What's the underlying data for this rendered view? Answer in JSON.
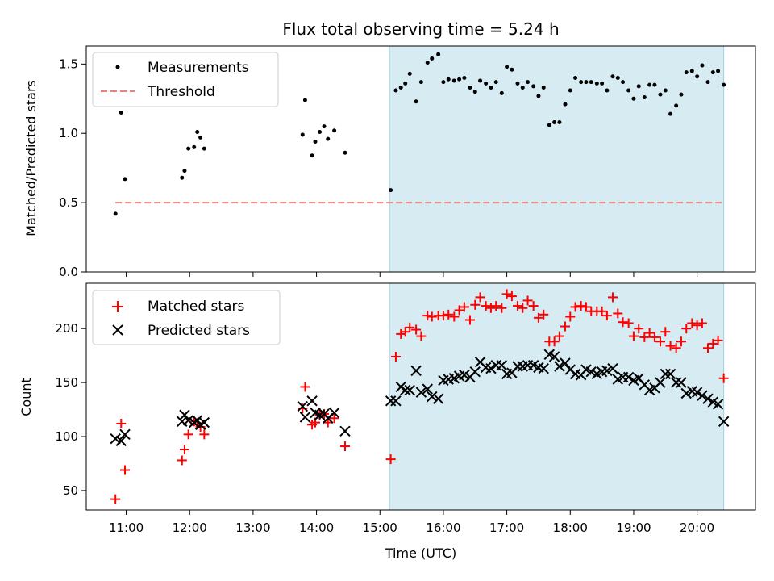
{
  "title": "Flux total observing time = 5.24 h",
  "colors": {
    "measurement": "#000000",
    "threshold": "#f08080",
    "shade": "#add8e6",
    "matched": "#ff0000",
    "predicted": "#000000"
  },
  "chart_data": [
    {
      "type": "scatter",
      "ylabel": "Matched/Predicted stars",
      "xlim": [
        10.37,
        20.92
      ],
      "ylim": [
        0,
        1.63
      ],
      "yticks": [
        "0.0",
        "0.5",
        "1.0",
        "1.5"
      ],
      "yticks_values": [
        0,
        0.5,
        1.0,
        1.5
      ],
      "legend": {
        "placement": "top-left",
        "entries": [
          "Measurements",
          "Threshold"
        ]
      },
      "shaded_region": [
        15.15,
        20.42
      ],
      "threshold": {
        "name": "Threshold",
        "y": 0.5,
        "x": [
          10.83,
          20.42
        ]
      },
      "series": [
        {
          "name": "Measurements",
          "points": [
            [
              10.83,
              0.42
            ],
            [
              10.92,
              1.15
            ],
            [
              10.98,
              0.67
            ],
            [
              11.88,
              0.68
            ],
            [
              11.92,
              0.73
            ],
            [
              11.98,
              0.89
            ],
            [
              12.07,
              0.9
            ],
            [
              12.12,
              1.01
            ],
            [
              12.17,
              0.97
            ],
            [
              12.23,
              0.89
            ],
            [
              13.78,
              0.99
            ],
            [
              13.82,
              1.24
            ],
            [
              13.93,
              0.84
            ],
            [
              13.98,
              0.94
            ],
            [
              14.05,
              1.01
            ],
            [
              14.12,
              1.05
            ],
            [
              14.18,
              0.96
            ],
            [
              14.28,
              1.02
            ],
            [
              14.45,
              0.86
            ],
            [
              15.17,
              0.59
            ],
            [
              15.25,
              1.31
            ],
            [
              15.33,
              1.33
            ],
            [
              15.4,
              1.36
            ],
            [
              15.47,
              1.43
            ],
            [
              15.57,
              1.23
            ],
            [
              15.65,
              1.37
            ],
            [
              15.75,
              1.51
            ],
            [
              15.82,
              1.54
            ],
            [
              15.92,
              1.57
            ],
            [
              16.0,
              1.37
            ],
            [
              16.08,
              1.39
            ],
            [
              16.17,
              1.38
            ],
            [
              16.25,
              1.39
            ],
            [
              16.33,
              1.4
            ],
            [
              16.42,
              1.33
            ],
            [
              16.5,
              1.3
            ],
            [
              16.58,
              1.38
            ],
            [
              16.67,
              1.36
            ],
            [
              16.75,
              1.33
            ],
            [
              16.83,
              1.37
            ],
            [
              16.92,
              1.29
            ],
            [
              17.0,
              1.48
            ],
            [
              17.08,
              1.46
            ],
            [
              17.17,
              1.36
            ],
            [
              17.25,
              1.33
            ],
            [
              17.33,
              1.37
            ],
            [
              17.42,
              1.34
            ],
            [
              17.5,
              1.27
            ],
            [
              17.58,
              1.33
            ],
            [
              17.67,
              1.06
            ],
            [
              17.75,
              1.08
            ],
            [
              17.83,
              1.08
            ],
            [
              17.92,
              1.21
            ],
            [
              18.0,
              1.31
            ],
            [
              18.08,
              1.4
            ],
            [
              18.17,
              1.37
            ],
            [
              18.25,
              1.37
            ],
            [
              18.33,
              1.37
            ],
            [
              18.42,
              1.36
            ],
            [
              18.5,
              1.36
            ],
            [
              18.58,
              1.31
            ],
            [
              18.67,
              1.41
            ],
            [
              18.75,
              1.4
            ],
            [
              18.83,
              1.37
            ],
            [
              18.92,
              1.31
            ],
            [
              19.0,
              1.25
            ],
            [
              19.08,
              1.34
            ],
            [
              19.17,
              1.26
            ],
            [
              19.25,
              1.35
            ],
            [
              19.33,
              1.35
            ],
            [
              19.42,
              1.28
            ],
            [
              19.5,
              1.31
            ],
            [
              19.58,
              1.14
            ],
            [
              19.67,
              1.2
            ],
            [
              19.75,
              1.28
            ],
            [
              19.83,
              1.44
            ],
            [
              19.92,
              1.45
            ],
            [
              20.0,
              1.41
            ],
            [
              20.08,
              1.49
            ],
            [
              20.17,
              1.37
            ],
            [
              20.25,
              1.44
            ],
            [
              20.33,
              1.45
            ],
            [
              20.42,
              1.35
            ]
          ]
        }
      ]
    },
    {
      "type": "scatter",
      "xlabel": "Time (UTC)",
      "ylabel": "Count",
      "xlim": [
        10.37,
        20.92
      ],
      "ylim": [
        32,
        242
      ],
      "yticks": [
        "50",
        "100",
        "150",
        "200"
      ],
      "yticks_values": [
        50,
        100,
        150,
        200
      ],
      "xticks": [
        "11:00",
        "12:00",
        "13:00",
        "14:00",
        "15:00",
        "16:00",
        "17:00",
        "18:00",
        "19:00",
        "20:00"
      ],
      "xticks_values": [
        11,
        12,
        13,
        14,
        15,
        16,
        17,
        18,
        19,
        20
      ],
      "legend": {
        "placement": "top-left",
        "entries": [
          "Matched stars",
          "Predicted stars"
        ]
      },
      "shaded_region": [
        15.15,
        20.42
      ],
      "series": [
        {
          "name": "Matched stars",
          "marker": "plus",
          "points": [
            [
              10.83,
              42
            ],
            [
              10.92,
              112
            ],
            [
              10.98,
              69
            ],
            [
              11.88,
              78
            ],
            [
              11.92,
              88
            ],
            [
              11.98,
              102
            ],
            [
              12.07,
              114
            ],
            [
              12.12,
              111
            ],
            [
              12.17,
              109
            ],
            [
              12.23,
              102
            ],
            [
              13.78,
              126
            ],
            [
              13.82,
              146
            ],
            [
              13.93,
              111
            ],
            [
              13.98,
              113
            ],
            [
              14.05,
              120
            ],
            [
              14.12,
              121
            ],
            [
              14.18,
              113
            ],
            [
              14.28,
              117
            ],
            [
              14.45,
              91
            ],
            [
              15.17,
              79
            ],
            [
              15.25,
              174
            ],
            [
              15.33,
              195
            ],
            [
              15.4,
              197
            ],
            [
              15.47,
              201
            ],
            [
              15.57,
              199
            ],
            [
              15.65,
              193
            ],
            [
              15.75,
              212
            ],
            [
              15.82,
              211
            ],
            [
              15.92,
              212
            ],
            [
              16.0,
              212
            ],
            [
              16.08,
              213
            ],
            [
              16.17,
              211
            ],
            [
              16.25,
              217
            ],
            [
              16.33,
              220
            ],
            [
              16.42,
              208
            ],
            [
              16.5,
              222
            ],
            [
              16.58,
              229
            ],
            [
              16.67,
              221
            ],
            [
              16.75,
              219
            ],
            [
              16.83,
              221
            ],
            [
              16.92,
              219
            ],
            [
              17.0,
              232
            ],
            [
              17.08,
              230
            ],
            [
              17.17,
              221
            ],
            [
              17.25,
              219
            ],
            [
              17.33,
              226
            ],
            [
              17.42,
              221
            ],
            [
              17.5,
              210
            ],
            [
              17.58,
              213
            ],
            [
              17.67,
              188
            ],
            [
              17.75,
              188
            ],
            [
              17.83,
              193
            ],
            [
              17.92,
              202
            ],
            [
              18.0,
              211
            ],
            [
              18.08,
              220
            ],
            [
              18.17,
              221
            ],
            [
              18.25,
              220
            ],
            [
              18.33,
              216
            ],
            [
              18.42,
              216
            ],
            [
              18.5,
              216
            ],
            [
              18.58,
              212
            ],
            [
              18.67,
              229
            ],
            [
              18.75,
              214
            ],
            [
              18.83,
              206
            ],
            [
              18.92,
              205
            ],
            [
              19.0,
              193
            ],
            [
              19.08,
              200
            ],
            [
              19.17,
              192
            ],
            [
              19.25,
              196
            ],
            [
              19.33,
              192
            ],
            [
              19.42,
              188
            ],
            [
              19.5,
              197
            ],
            [
              19.58,
              184
            ],
            [
              19.67,
              182
            ],
            [
              19.75,
              188
            ],
            [
              19.83,
              200
            ],
            [
              19.92,
              205
            ],
            [
              20.0,
              203
            ],
            [
              20.08,
              205
            ],
            [
              20.17,
              182
            ],
            [
              20.25,
              186
            ],
            [
              20.33,
              189
            ],
            [
              20.42,
              154
            ]
          ]
        },
        {
          "name": "Predicted stars",
          "marker": "x",
          "points": [
            [
              10.83,
              98
            ],
            [
              10.92,
              96
            ],
            [
              10.98,
              102
            ],
            [
              11.88,
              114
            ],
            [
              11.92,
              120
            ],
            [
              11.98,
              115
            ],
            [
              12.07,
              113
            ],
            [
              12.12,
              115
            ],
            [
              12.17,
              111
            ],
            [
              12.23,
              113
            ],
            [
              13.78,
              128
            ],
            [
              13.82,
              118
            ],
            [
              13.93,
              133
            ],
            [
              13.98,
              122
            ],
            [
              14.05,
              120
            ],
            [
              14.12,
              121
            ],
            [
              14.18,
              117
            ],
            [
              14.28,
              122
            ],
            [
              14.45,
              105
            ],
            [
              15.17,
              133
            ],
            [
              15.25,
              133
            ],
            [
              15.33,
              146
            ],
            [
              15.4,
              143
            ],
            [
              15.47,
              143
            ],
            [
              15.57,
              161
            ],
            [
              15.65,
              141
            ],
            [
              15.75,
              144
            ],
            [
              15.82,
              137
            ],
            [
              15.92,
              135
            ],
            [
              16.0,
              152
            ],
            [
              16.08,
              153
            ],
            [
              16.17,
              154
            ],
            [
              16.25,
              156
            ],
            [
              16.33,
              157
            ],
            [
              16.42,
              155
            ],
            [
              16.5,
              160
            ],
            [
              16.58,
              169
            ],
            [
              16.67,
              164
            ],
            [
              16.75,
              163
            ],
            [
              16.83,
              166
            ],
            [
              16.92,
              166
            ],
            [
              17.0,
              158
            ],
            [
              17.08,
              159
            ],
            [
              17.17,
              165
            ],
            [
              17.25,
              165
            ],
            [
              17.33,
              166
            ],
            [
              17.42,
              166
            ],
            [
              17.5,
              164
            ],
            [
              17.58,
              163
            ],
            [
              17.67,
              176
            ],
            [
              17.75,
              174
            ],
            [
              17.83,
              165
            ],
            [
              17.92,
              168
            ],
            [
              18.0,
              162
            ],
            [
              18.08,
              158
            ],
            [
              18.17,
              157
            ],
            [
              18.25,
              162
            ],
            [
              18.33,
              160
            ],
            [
              18.42,
              158
            ],
            [
              18.5,
              160
            ],
            [
              18.58,
              161
            ],
            [
              18.67,
              163
            ],
            [
              18.75,
              153
            ],
            [
              18.83,
              155
            ],
            [
              18.92,
              155
            ],
            [
              19.0,
              152
            ],
            [
              19.08,
              154
            ],
            [
              19.17,
              148
            ],
            [
              19.25,
              143
            ],
            [
              19.33,
              145
            ],
            [
              19.42,
              150
            ],
            [
              19.5,
              158
            ],
            [
              19.58,
              158
            ],
            [
              19.67,
              150
            ],
            [
              19.75,
              150
            ],
            [
              19.83,
              140
            ],
            [
              19.92,
              142
            ],
            [
              20.0,
              141
            ],
            [
              20.08,
              138
            ],
            [
              20.17,
              135
            ],
            [
              20.25,
              132
            ],
            [
              20.33,
              130
            ],
            [
              20.42,
              114
            ]
          ]
        }
      ]
    }
  ]
}
